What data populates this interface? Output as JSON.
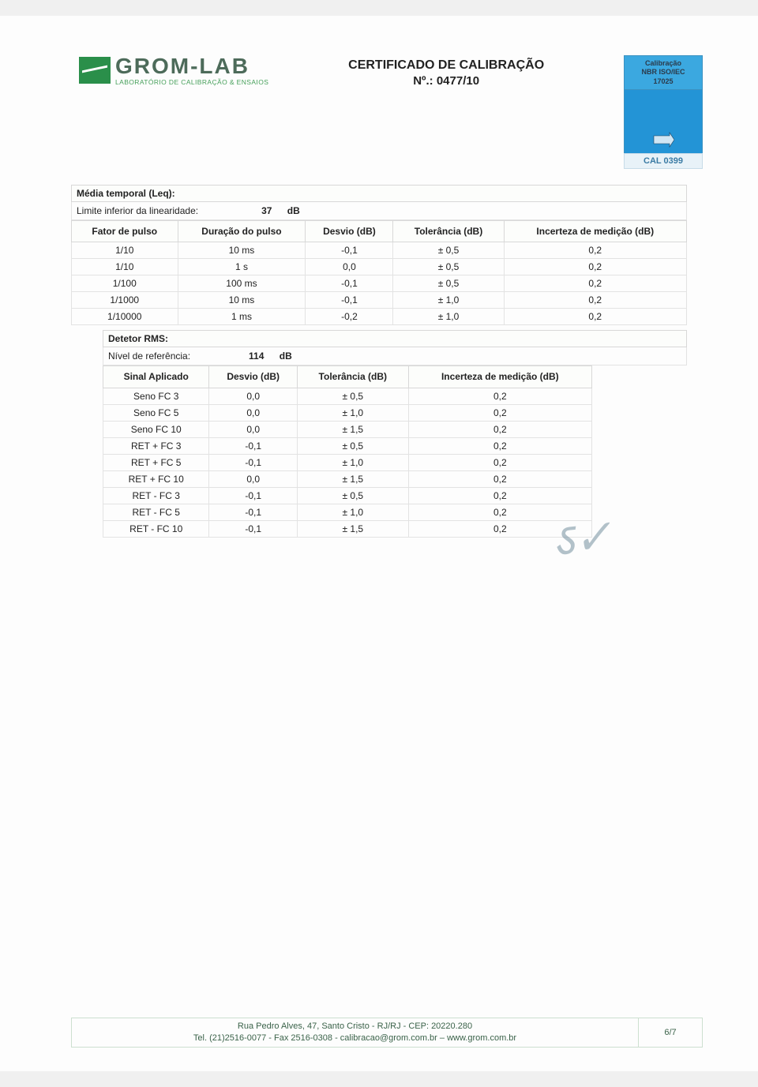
{
  "logo": {
    "name": "GROM-LAB",
    "subtitle": "LABORATÓRIO DE CALIBRAÇÃO & ENSAIOS"
  },
  "title": {
    "line1": "CERTIFICADO DE CALIBRAÇÃO",
    "line2": "Nº.: 0477/10"
  },
  "seal": {
    "line1": "Calibração",
    "line2": "NBR ISO/IEC",
    "line3": "17025",
    "code": "CAL 0399"
  },
  "section1": {
    "title": "Média temporal (Leq):",
    "limit_label": "Limite inferior da linearidade:",
    "limit_value": "37",
    "limit_unit": "dB",
    "headers": [
      "Fator de pulso",
      "Duração do pulso",
      "Desvio (dB)",
      "Tolerância (dB)",
      "Incerteza de medição (dB)"
    ],
    "rows": [
      [
        "1/10",
        "10 ms",
        "-0,1",
        "± 0,5",
        "0,2"
      ],
      [
        "1/10",
        "1 s",
        "0,0",
        "± 0,5",
        "0,2"
      ],
      [
        "1/100",
        "100 ms",
        "-0,1",
        "± 0,5",
        "0,2"
      ],
      [
        "1/1000",
        "10 ms",
        "-0,1",
        "± 1,0",
        "0,2"
      ],
      [
        "1/10000",
        "1 ms",
        "-0,2",
        "± 1,0",
        "0,2"
      ]
    ]
  },
  "section2": {
    "title": "Detetor RMS:",
    "ref_label": "Nível de referência:",
    "ref_value": "114",
    "ref_unit": "dB",
    "headers": [
      "Sinal Aplicado",
      "Desvio (dB)",
      "Tolerância (dB)",
      "Incerteza de medição (dB)"
    ],
    "rows": [
      [
        "Seno FC 3",
        "0,0",
        "± 0,5",
        "0,2"
      ],
      [
        "Seno FC 5",
        "0,0",
        "± 1,0",
        "0,2"
      ],
      [
        "Seno FC 10",
        "0,0",
        "± 1,5",
        "0,2"
      ],
      [
        "RET + FC 3",
        "-0,1",
        "± 0,5",
        "0,2"
      ],
      [
        "RET + FC 5",
        "-0,1",
        "± 1,0",
        "0,2"
      ],
      [
        "RET + FC 10",
        "0,0",
        "± 1,5",
        "0,2"
      ],
      [
        "RET - FC 3",
        "-0,1",
        "± 0,5",
        "0,2"
      ],
      [
        "RET - FC 5",
        "-0,1",
        "± 1,0",
        "0,2"
      ],
      [
        "RET - FC 10",
        "-0,1",
        "± 1,5",
        "0,2"
      ]
    ]
  },
  "footer": {
    "line1": "Rua Pedro Alves, 47, Santo Cristo - RJ/RJ - CEP: 20220.280",
    "line2": "Tel. (21)2516-0077 - Fax 2516-0308 - calibracao@grom.com.br – www.grom.com.br",
    "page": "6/7"
  },
  "colors": {
    "seal_blue": "#3ba8e0",
    "seal_dark": "#2394d6",
    "border": "#d8d8d8",
    "green": "#2a8f4a"
  }
}
